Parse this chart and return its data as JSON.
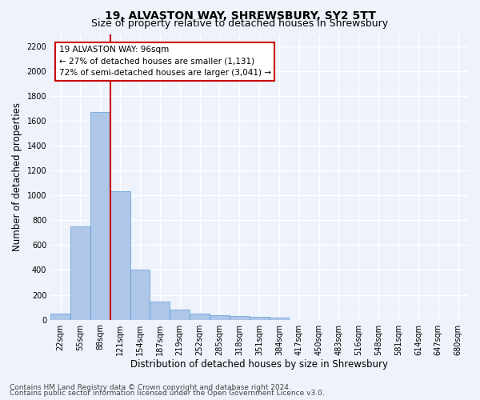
{
  "title": "19, ALVASTON WAY, SHREWSBURY, SY2 5TT",
  "subtitle": "Size of property relative to detached houses in Shrewsbury",
  "xlabel": "Distribution of detached houses by size in Shrewsbury",
  "ylabel": "Number of detached properties",
  "bin_labels": [
    "22sqm",
    "55sqm",
    "88sqm",
    "121sqm",
    "154sqm",
    "187sqm",
    "219sqm",
    "252sqm",
    "285sqm",
    "318sqm",
    "351sqm",
    "384sqm",
    "417sqm",
    "450sqm",
    "483sqm",
    "516sqm",
    "548sqm",
    "581sqm",
    "614sqm",
    "647sqm",
    "680sqm"
  ],
  "bar_heights": [
    50,
    748,
    1672,
    1032,
    403,
    148,
    83,
    47,
    38,
    30,
    20,
    18,
    0,
    0,
    0,
    0,
    0,
    0,
    0,
    0,
    0
  ],
  "bar_color": "#aec6e8",
  "bar_edge_color": "#5b9bd5",
  "red_line_index": 2,
  "red_line_color": "#cc0000",
  "ylim": [
    0,
    2300
  ],
  "yticks": [
    0,
    200,
    400,
    600,
    800,
    1000,
    1200,
    1400,
    1600,
    1800,
    2000,
    2200
  ],
  "annotation_line1": "19 ALVASTON WAY: 96sqm",
  "annotation_line2": "← 27% of detached houses are smaller (1,131)",
  "annotation_line3": "72% of semi-detached houses are larger (3,041) →",
  "annotation_box_color": "#ffffff",
  "annotation_box_edge": "#cc0000",
  "footnote1": "Contains HM Land Registry data © Crown copyright and database right 2024.",
  "footnote2": "Contains public sector information licensed under the Open Government Licence v3.0.",
  "bg_color": "#eef2fb",
  "plot_bg_color": "#eef2fb",
  "grid_color": "#ffffff",
  "title_fontsize": 10,
  "subtitle_fontsize": 9,
  "axis_label_fontsize": 8.5,
  "tick_fontsize": 7,
  "annotation_fontsize": 7.5,
  "footnote_fontsize": 6.5
}
